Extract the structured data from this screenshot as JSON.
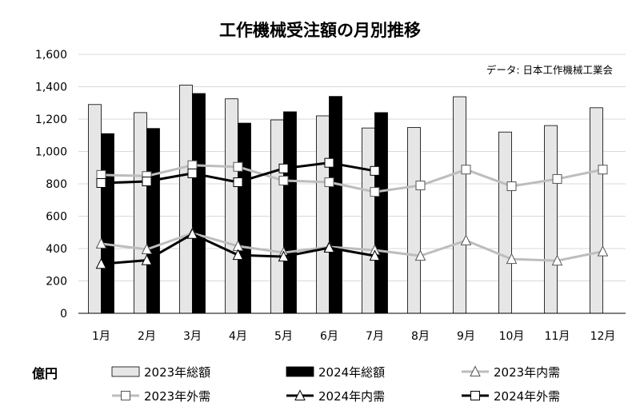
{
  "chart_data": {
    "type": "bar",
    "title": "工作機械受注額の月別推移",
    "source": "データ: 日本工作機械工業会",
    "unit_label": "億円",
    "categories": [
      "1月",
      "2月",
      "3月",
      "4月",
      "5月",
      "6月",
      "7月",
      "8月",
      "9月",
      "10月",
      "11月",
      "12月"
    ],
    "ylim": [
      0,
      1600
    ],
    "yticks": [
      0,
      200,
      400,
      600,
      800,
      1000,
      1200,
      1400,
      1600
    ],
    "ytick_labels": [
      "0",
      "200",
      "400",
      "600",
      "800",
      "1,000",
      "1,200",
      "1,400",
      "1,600"
    ],
    "grid": true,
    "legend_placement": "bottom",
    "bar_series": [
      {
        "name": "2023年総額",
        "color": "#e6e6e6",
        "values": [
          1290,
          1240,
          1410,
          1325,
          1195,
          1220,
          1145,
          1148,
          1338,
          1120,
          1160,
          1270
        ]
      },
      {
        "name": "2024年総額",
        "color": "#000000",
        "values": [
          1110,
          1142,
          1358,
          1175,
          1245,
          1340,
          1240,
          null,
          null,
          null,
          null,
          null
        ]
      }
    ],
    "line_series": [
      {
        "name": "2023年内需",
        "color": "#bdbdbd",
        "marker": "triangle",
        "values": [
          430,
          395,
          495,
          415,
          375,
          410,
          390,
          355,
          450,
          335,
          325,
          382
        ]
      },
      {
        "name": "2023年外需",
        "color": "#bdbdbd",
        "marker": "square",
        "values": [
          855,
          848,
          915,
          905,
          820,
          810,
          750,
          790,
          888,
          785,
          830,
          888
        ]
      },
      {
        "name": "2024年内需",
        "color": "#000000",
        "marker": "triangle",
        "values": [
          305,
          328,
          490,
          360,
          350,
          405,
          355,
          null,
          null,
          null,
          null,
          null
        ]
      },
      {
        "name": "2024年外需",
        "color": "#000000",
        "marker": "square",
        "values": [
          805,
          815,
          865,
          810,
          895,
          930,
          880,
          null,
          null,
          null,
          null,
          null
        ]
      }
    ]
  }
}
